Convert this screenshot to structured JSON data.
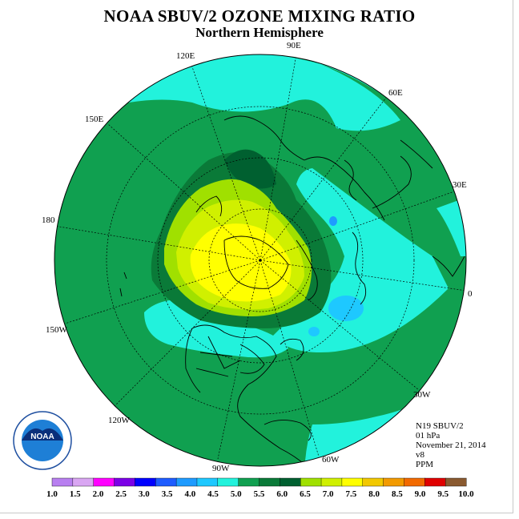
{
  "title": "NOAA SBUV/2 OZONE MIXING RATIO",
  "subtitle": "Northern Hemisphere",
  "logo_text": "NOAA",
  "logo_ring_text": "NATIONAL OCEANIC AND ATMOSPHERIC ADMINISTRATION • U.S. DEPARTMENT OF COMMERCE",
  "info": {
    "instrument": "N19 SBUV/2",
    "level": "01 hPa",
    "date": "November 21, 2014",
    "version": "v8",
    "units": "PPM"
  },
  "longitude_labels": [
    "120E",
    "90E",
    "60E",
    "150E",
    "30E",
    "180",
    "0",
    "150W",
    "30W",
    "120W",
    "90W",
    "60W"
  ],
  "colorbar": {
    "ticks": [
      "1.0",
      "1.5",
      "2.0",
      "2.5",
      "3.0",
      "3.5",
      "4.0",
      "4.5",
      "5.0",
      "5.5",
      "6.0",
      "6.5",
      "7.0",
      "7.5",
      "8.0",
      "8.5",
      "9.0",
      "9.5",
      "10.0"
    ],
    "colors": [
      "#b87ff0",
      "#d9a6f2",
      "#ff00ff",
      "#7b00e6",
      "#0000ff",
      "#1e5cff",
      "#1e9bff",
      "#1ec8ff",
      "#22f2dc",
      "#10a050",
      "#0a7a38",
      "#006030",
      "#a0e000",
      "#d0f000",
      "#ffff00",
      "#f2c800",
      "#f29a00",
      "#f26a00",
      "#e00000",
      "#8a5a30"
    ]
  }
}
